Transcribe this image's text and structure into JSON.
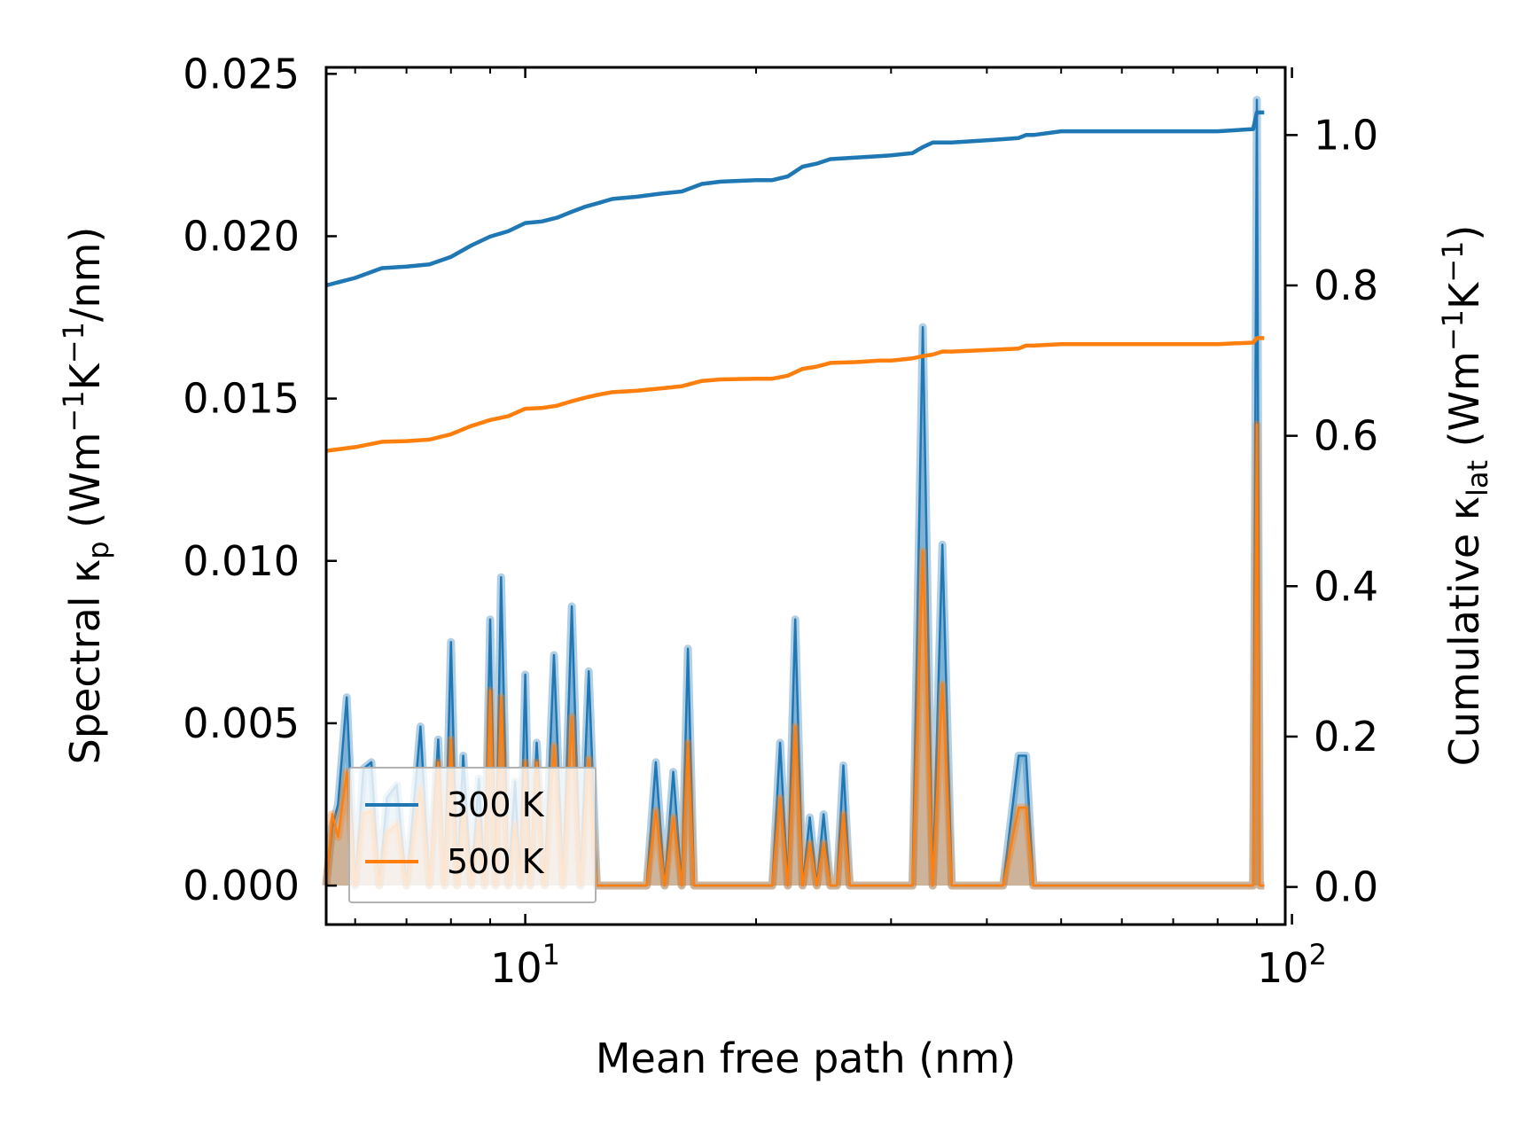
{
  "chart_data": {
    "type": "line",
    "xscale": "log",
    "xlabel": "Mean free path (nm)",
    "xlim": [
      5.5,
      98
    ],
    "x_ticks": [
      10,
      100
    ],
    "x_tick_labels": [
      {
        "base": "10",
        "exp": "1"
      },
      {
        "base": "10",
        "exp": "2"
      }
    ],
    "ylabel_left": {
      "prefix": "Spectral κ",
      "sub": "p",
      "units_start": " (Wm",
      "sup1": "−1",
      "mid": "K",
      "sup2": "−1",
      "end": "/nm)"
    },
    "ylim_left": [
      -0.0012,
      0.0252
    ],
    "yticks_left": [
      0.0,
      0.005,
      0.01,
      0.015,
      0.02,
      0.025
    ],
    "ytick_labels_left": [
      "0.000",
      "0.005",
      "0.010",
      "0.015",
      "0.020",
      "0.025"
    ],
    "ylabel_right": {
      "prefix": "Cumulative κ",
      "sub": "lat",
      "units_start": " (Wm",
      "sup1": "−1",
      "mid": "K",
      "sup2": "−1",
      "end": ")"
    },
    "ylim_right": [
      -0.05,
      1.09
    ],
    "yticks_right": [
      0.0,
      0.2,
      0.4,
      0.6,
      0.8,
      1.0
    ],
    "ytick_labels_right": [
      "0.0",
      "0.2",
      "0.4",
      "0.6",
      "0.8",
      "1.0"
    ],
    "legend": {
      "position": "lower-left",
      "entries": [
        "300 K",
        "500 K"
      ]
    },
    "series": [
      {
        "name": "300 K",
        "color": "#1f77b4",
        "spectral": {
          "x": [
            5.5,
            5.6,
            5.7,
            5.85,
            6.0,
            6.15,
            6.3,
            6.45,
            6.6,
            6.8,
            7.0,
            7.15,
            7.3,
            7.5,
            7.7,
            7.85,
            8.0,
            8.15,
            8.3,
            8.5,
            8.7,
            8.85,
            9.0,
            9.15,
            9.3,
            9.5,
            9.7,
            9.85,
            10.0,
            10.15,
            10.35,
            10.6,
            10.9,
            11.2,
            11.5,
            11.8,
            12.1,
            12.4,
            12.7,
            13.0,
            13.3,
            13.6,
            14.0,
            14.4,
            14.8,
            15.2,
            15.6,
            16.0,
            16.3,
            16.6,
            17.0,
            17.4,
            18.0,
            19.0,
            20.0,
            21.0,
            21.5,
            22.0,
            22.5,
            23.0,
            23.5,
            24.0,
            24.5,
            25.0,
            25.5,
            26.0,
            26.5,
            27.0,
            28.0,
            29.0,
            30.0,
            31.0,
            32.0,
            33.0,
            34.0,
            35.0,
            36.0,
            38.0,
            40.0,
            42.0,
            44.0,
            45.0,
            46.0,
            47.0,
            48.0,
            55.0,
            65.0,
            75.0,
            85.0,
            89.0,
            90.0,
            90.8,
            91.5,
            92.0
          ],
          "y": [
            0.0,
            0.0018,
            0.0025,
            0.0058,
            0.0,
            0.0036,
            0.0038,
            0.0,
            0.0027,
            0.0031,
            0.0,
            0.0024,
            0.0049,
            0.0,
            0.0045,
            0.0,
            0.0075,
            0.0,
            0.004,
            0.0,
            0.0033,
            0.0,
            0.0082,
            0.0,
            0.0095,
            0.0,
            0.0032,
            0.0,
            0.0065,
            0.0,
            0.0044,
            0.0,
            0.0071,
            0.0,
            0.0086,
            0.0,
            0.0066,
            0.0,
            0.0,
            0.0,
            0.0,
            0.0,
            0.0,
            0.0,
            0.0038,
            0.0,
            0.0035,
            0.0,
            0.0073,
            0.0,
            0.0,
            0.0,
            0.0,
            0.0,
            0.0,
            0.0,
            0.0044,
            0.0,
            0.0082,
            0.0,
            0.0021,
            0.0,
            0.0022,
            0.0,
            0.0,
            0.0037,
            0.0,
            0.0,
            0.0,
            0.0,
            0.0,
            0.0,
            0.0,
            0.0172,
            0.0,
            0.0105,
            0.0,
            0.0,
            0.0,
            0.0,
            0.004,
            0.004,
            0.0,
            0.0,
            0.0,
            0.0,
            0.0,
            0.0,
            0.0,
            0.0,
            0.0242,
            0.0,
            0.0,
            0.0
          ]
        },
        "cumulative": {
          "x": [
            5.5,
            6.0,
            6.5,
            7.0,
            7.5,
            8.0,
            8.5,
            9.0,
            9.5,
            10.0,
            10.5,
            11.0,
            11.5,
            12.0,
            12.5,
            13.0,
            14.0,
            15.0,
            16.0,
            17.0,
            18.0,
            20.0,
            21.0,
            22.0,
            23.0,
            24.0,
            25.0,
            27.0,
            29.0,
            30.0,
            32.0,
            33.0,
            34.0,
            35.0,
            36.0,
            40.0,
            44.0,
            45.0,
            46.0,
            50.0,
            60.0,
            70.0,
            80.0,
            89.0,
            90.0,
            92.0
          ],
          "y": [
            0.8,
            0.81,
            0.823,
            0.825,
            0.828,
            0.838,
            0.853,
            0.865,
            0.872,
            0.883,
            0.885,
            0.89,
            0.898,
            0.905,
            0.91,
            0.915,
            0.918,
            0.922,
            0.925,
            0.935,
            0.938,
            0.94,
            0.94,
            0.945,
            0.958,
            0.962,
            0.968,
            0.97,
            0.972,
            0.973,
            0.976,
            0.984,
            0.99,
            0.99,
            0.99,
            0.993,
            0.996,
            1.0,
            1.0,
            1.005,
            1.005,
            1.005,
            1.005,
            1.008,
            1.03,
            1.03
          ]
        }
      },
      {
        "name": "500 K",
        "color": "#ff7f0e",
        "spectral": {
          "x": [
            5.5,
            5.6,
            5.7,
            5.85,
            6.0,
            6.15,
            6.3,
            6.45,
            6.6,
            6.8,
            7.0,
            7.15,
            7.3,
            7.5,
            7.7,
            7.85,
            8.0,
            8.15,
            8.3,
            8.5,
            8.7,
            8.85,
            9.0,
            9.15,
            9.3,
            9.5,
            9.7,
            9.85,
            10.0,
            10.15,
            10.35,
            10.6,
            10.9,
            11.2,
            11.5,
            11.8,
            12.1,
            12.4,
            12.7,
            13.0,
            13.3,
            13.6,
            14.0,
            14.4,
            14.8,
            15.2,
            15.6,
            16.0,
            16.3,
            16.6,
            17.0,
            17.4,
            18.0,
            19.0,
            20.0,
            21.0,
            21.5,
            22.0,
            22.5,
            23.0,
            23.5,
            24.0,
            24.5,
            25.0,
            25.5,
            26.0,
            26.5,
            27.0,
            28.0,
            29.0,
            30.0,
            31.0,
            32.0,
            33.0,
            34.0,
            35.0,
            36.0,
            38.0,
            40.0,
            42.0,
            44.0,
            45.0,
            46.0,
            47.0,
            48.0,
            55.0,
            65.0,
            75.0,
            85.0,
            89.0,
            90.0,
            90.8,
            91.5,
            92.0
          ],
          "y": [
            0.0,
            0.0022,
            0.0015,
            0.0035,
            0.0,
            0.0022,
            0.0023,
            0.0,
            0.0016,
            0.0019,
            0.0,
            0.0015,
            0.003,
            0.0,
            0.0038,
            0.0,
            0.0045,
            0.0,
            0.0024,
            0.0,
            0.002,
            0.0,
            0.006,
            0.0,
            0.0058,
            0.0,
            0.0019,
            0.0,
            0.0038,
            0.0,
            0.0038,
            0.0,
            0.0043,
            0.0,
            0.0052,
            0.0,
            0.0039,
            0.0,
            0.0,
            0.0,
            0.0,
            0.0,
            0.0,
            0.0,
            0.0023,
            0.0,
            0.0021,
            0.0,
            0.0044,
            0.0,
            0.0,
            0.0,
            0.0,
            0.0,
            0.0,
            0.0,
            0.0027,
            0.0,
            0.0049,
            0.0,
            0.0013,
            0.0,
            0.0013,
            0.0,
            0.0,
            0.0022,
            0.0,
            0.0,
            0.0,
            0.0,
            0.0,
            0.0,
            0.0,
            0.0103,
            0.0,
            0.0062,
            0.0,
            0.0,
            0.0,
            0.0,
            0.0024,
            0.0024,
            0.0,
            0.0,
            0.0,
            0.0,
            0.0,
            0.0,
            0.0,
            0.0,
            0.0142,
            0.0,
            0.0,
            0.0
          ]
        },
        "cumulative": {
          "x": [
            5.5,
            6.0,
            6.5,
            7.0,
            7.5,
            8.0,
            8.5,
            9.0,
            9.5,
            10.0,
            10.5,
            11.0,
            11.5,
            12.0,
            12.5,
            13.0,
            14.0,
            15.0,
            16.0,
            17.0,
            18.0,
            20.0,
            21.0,
            22.0,
            23.0,
            24.0,
            25.0,
            27.0,
            29.0,
            30.0,
            32.0,
            33.0,
            34.0,
            35.0,
            36.0,
            40.0,
            44.0,
            45.0,
            46.0,
            50.0,
            60.0,
            70.0,
            80.0,
            89.0,
            90.0,
            92.0
          ],
          "y": [
            0.58,
            0.585,
            0.592,
            0.593,
            0.595,
            0.602,
            0.613,
            0.621,
            0.626,
            0.636,
            0.637,
            0.64,
            0.646,
            0.651,
            0.655,
            0.658,
            0.66,
            0.663,
            0.666,
            0.673,
            0.675,
            0.676,
            0.676,
            0.68,
            0.689,
            0.692,
            0.697,
            0.698,
            0.7,
            0.7,
            0.703,
            0.706,
            0.708,
            0.712,
            0.712,
            0.714,
            0.716,
            0.72,
            0.72,
            0.722,
            0.722,
            0.722,
            0.722,
            0.724,
            0.73,
            0.73
          ]
        }
      }
    ]
  }
}
